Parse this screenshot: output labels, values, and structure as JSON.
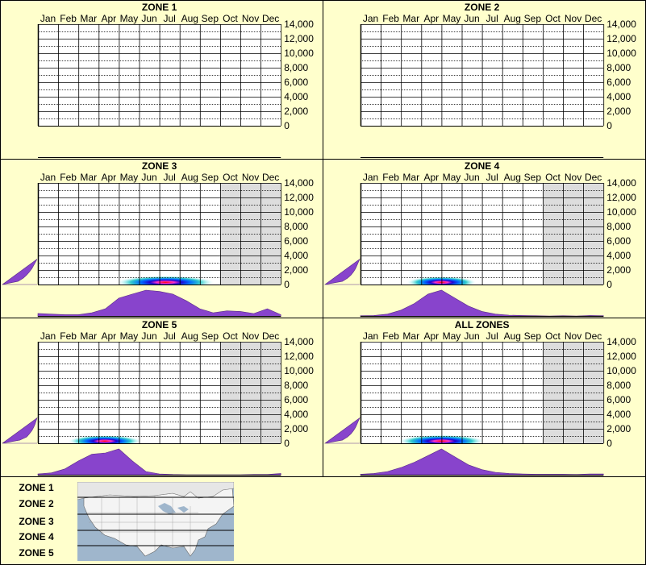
{
  "months": [
    "Jan",
    "Feb",
    "Mar",
    "Apr",
    "May",
    "Jun",
    "Jul",
    "Aug",
    "Sep",
    "Oct",
    "Nov",
    "Dec"
  ],
  "y_ticks": [
    "14,000",
    "12,000",
    "10,000",
    "8,000",
    "6,000",
    "4,000",
    "2,000",
    "0"
  ],
  "colors": {
    "background": "#ffffcc",
    "density_fill": "#8844cc",
    "shaded_months": "#dddddd",
    "grid": "#000000"
  },
  "chart_data": [
    {
      "type": "heatmap",
      "title": "ZONE 1",
      "x_categories": [
        "Jan",
        "Feb",
        "Mar",
        "Apr",
        "May",
        "Jun",
        "Jul",
        "Aug",
        "Sep",
        "Oct",
        "Nov",
        "Dec"
      ],
      "ylim": [
        0,
        14000
      ],
      "y_ticks": [
        0,
        2000,
        4000,
        6000,
        8000,
        10000,
        12000,
        14000
      ],
      "has_data": false,
      "shaded_months": [],
      "hot_spot": null,
      "month_density": [],
      "elevation_density": []
    },
    {
      "type": "heatmap",
      "title": "ZONE 2",
      "x_categories": [
        "Jan",
        "Feb",
        "Mar",
        "Apr",
        "May",
        "Jun",
        "Jul",
        "Aug",
        "Sep",
        "Oct",
        "Nov",
        "Dec"
      ],
      "ylim": [
        0,
        14000
      ],
      "y_ticks": [
        0,
        2000,
        4000,
        6000,
        8000,
        10000,
        12000,
        14000
      ],
      "has_data": false,
      "shaded_months": [],
      "hot_spot": null,
      "month_density": [],
      "elevation_density": []
    },
    {
      "type": "heatmap",
      "title": "ZONE 3",
      "x_categories": [
        "Jan",
        "Feb",
        "Mar",
        "Apr",
        "May",
        "Jun",
        "Jul",
        "Aug",
        "Sep",
        "Oct",
        "Nov",
        "Dec"
      ],
      "ylim": [
        0,
        14000
      ],
      "y_ticks": [
        0,
        2000,
        4000,
        6000,
        8000,
        10000,
        12000,
        14000
      ],
      "has_data": true,
      "shaded_months": [
        "Oct",
        "Nov",
        "Dec"
      ],
      "hot_spot": {
        "month": 6.3,
        "month_spread": 2.4,
        "elev": 300,
        "elev_spread": 900
      },
      "month_density": [
        0.12,
        0.1,
        0.08,
        0.08,
        0.15,
        0.3,
        0.7,
        0.85,
        1.0,
        0.95,
        0.85,
        0.6,
        0.3,
        0.15,
        0.22,
        0.2,
        0.12,
        0.3,
        0.08
      ],
      "elevation_density": [
        1.0,
        0.55,
        0.4,
        0.3,
        0.22,
        0.15,
        0.1,
        0.05,
        0.0
      ]
    },
    {
      "type": "heatmap",
      "title": "ZONE 4",
      "x_categories": [
        "Jan",
        "Feb",
        "Mar",
        "Apr",
        "May",
        "Jun",
        "Jul",
        "Aug",
        "Sep",
        "Oct",
        "Nov",
        "Dec"
      ],
      "ylim": [
        0,
        14000
      ],
      "y_ticks": [
        0,
        2000,
        4000,
        6000,
        8000,
        10000,
        12000,
        14000
      ],
      "has_data": true,
      "shaded_months": [
        "Oct",
        "Nov",
        "Dec"
      ],
      "hot_spot": {
        "month": 4.0,
        "month_spread": 1.7,
        "elev": 300,
        "elev_spread": 800
      },
      "month_density": [
        0.04,
        0.05,
        0.1,
        0.25,
        0.5,
        0.85,
        1.0,
        0.7,
        0.4,
        0.2,
        0.1,
        0.06,
        0.05,
        0.04,
        0.03,
        0.04,
        0.03,
        0.05,
        0.04
      ],
      "elevation_density": [
        1.0,
        0.5,
        0.35,
        0.25,
        0.18,
        0.12,
        0.08,
        0.04,
        0.0
      ]
    },
    {
      "type": "heatmap",
      "title": "ZONE 5",
      "x_categories": [
        "Jan",
        "Feb",
        "Mar",
        "Apr",
        "May",
        "Jun",
        "Jul",
        "Aug",
        "Sep",
        "Oct",
        "Nov",
        "Dec"
      ],
      "ylim": [
        0,
        14000
      ],
      "y_ticks": [
        0,
        2000,
        4000,
        6000,
        8000,
        10000,
        12000,
        14000
      ],
      "has_data": true,
      "shaded_months": [
        "Oct",
        "Nov",
        "Dec"
      ],
      "hot_spot": {
        "month": 3.3,
        "month_spread": 1.8,
        "elev": 300,
        "elev_spread": 800
      },
      "month_density": [
        0.06,
        0.1,
        0.25,
        0.55,
        0.8,
        0.85,
        1.0,
        0.55,
        0.15,
        0.06,
        0.04,
        0.03,
        0.03,
        0.03,
        0.03,
        0.03,
        0.04,
        0.04,
        0.08
      ],
      "elevation_density": [
        1.0,
        0.5,
        0.3,
        0.22,
        0.15,
        0.1,
        0.06,
        0.03,
        0.0
      ]
    },
    {
      "type": "heatmap",
      "title": "ALL ZONES",
      "x_categories": [
        "Jan",
        "Feb",
        "Mar",
        "Apr",
        "May",
        "Jun",
        "Jul",
        "Aug",
        "Sep",
        "Oct",
        "Nov",
        "Dec"
      ],
      "ylim": [
        0,
        14000
      ],
      "y_ticks": [
        0,
        2000,
        4000,
        6000,
        8000,
        10000,
        12000,
        14000
      ],
      "has_data": true,
      "shaded_months": [
        "Oct",
        "Nov",
        "Dec"
      ],
      "hot_spot": {
        "month": 4.0,
        "month_spread": 2.1,
        "elev": 300,
        "elev_spread": 850
      },
      "month_density": [
        0.05,
        0.08,
        0.15,
        0.3,
        0.5,
        0.75,
        1.0,
        0.7,
        0.4,
        0.22,
        0.12,
        0.08,
        0.06,
        0.05,
        0.05,
        0.05,
        0.04,
        0.06,
        0.06
      ],
      "elevation_density": [
        1.0,
        0.5,
        0.35,
        0.25,
        0.18,
        0.12,
        0.08,
        0.04,
        0.0
      ]
    }
  ],
  "legend": {
    "zones": [
      "ZONE 1",
      "ZONE 2",
      "ZONE 3",
      "ZONE 4",
      "ZONE 5"
    ],
    "map_icon": "us-map-zone-bands"
  }
}
